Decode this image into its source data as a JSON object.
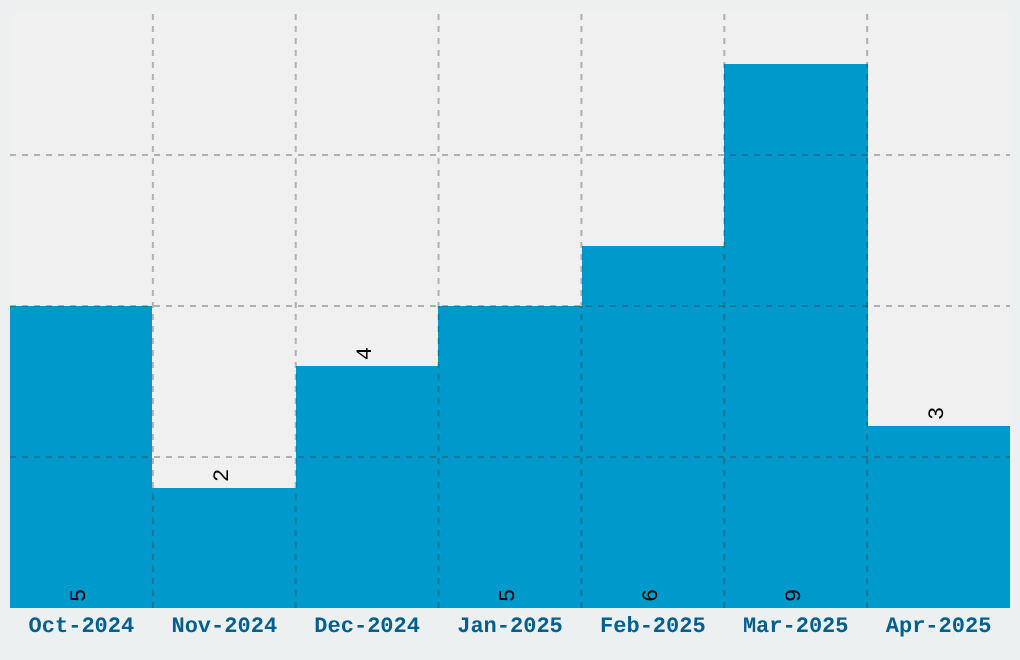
{
  "chart_data": {
    "type": "bar",
    "categories": [
      "Oct-2024",
      "Nov-2024",
      "Dec-2024",
      "Jan-2025",
      "Feb-2025",
      "Mar-2025",
      "Apr-2025"
    ],
    "values": [
      5,
      2,
      4,
      5,
      6,
      9,
      3
    ],
    "color": "#0099cc",
    "ylim": [
      0,
      9.9
    ],
    "yticks": [
      {
        "value": 2.5,
        "label": null
      },
      {
        "value": 5,
        "label": null
      },
      {
        "value": 7.5,
        "label": null
      }
    ],
    "grid": true,
    "data_labels": true,
    "tick_labels": "x"
  }
}
